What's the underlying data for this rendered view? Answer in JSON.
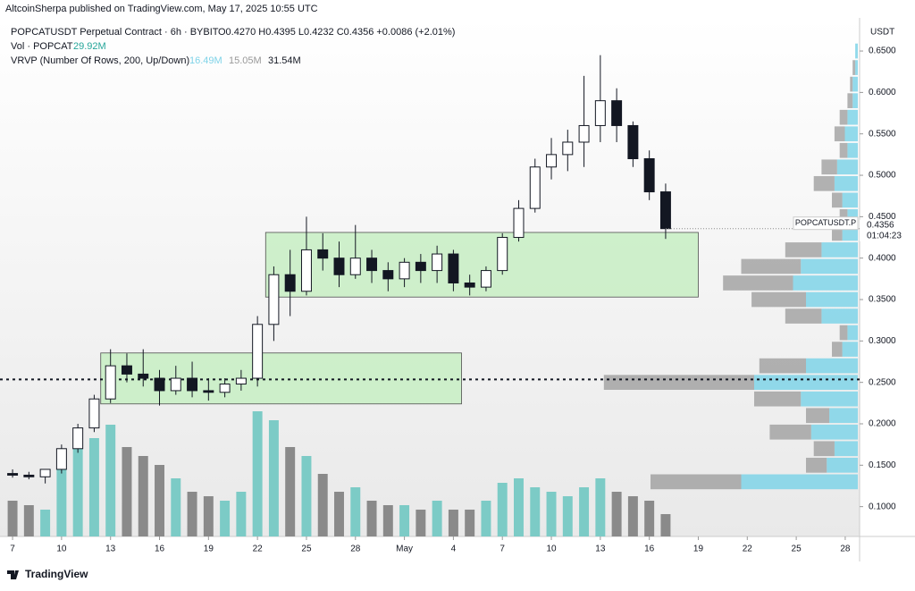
{
  "header": {
    "publisher": "AltcoinSherpa published on TradingView.com, May 17, 2025 10:55 UTC",
    "footer": "TradingView"
  },
  "chart_data": {
    "type": "candlestick",
    "symbol_line": "POPCATUSDT Perpetual Contract · 6h · BYBIT",
    "ohlc_line": "O0.4270 H0.4395 L0.4232 C0.4356 +0.0086 (+2.01%)",
    "vol_name": "Vol · POPCAT",
    "vol_value": "29.92M",
    "vrvp_name": "VRVP (Number Of Rows, 200, Up/Down)",
    "vrvp_up": "16.49M",
    "vrvp_down": "15.05M",
    "vrvp_total": "31.54M",
    "y_unit": "USDT",
    "symbol": "POPCATUSDT.P",
    "countdown": "01:04:23",
    "last_price": {
      "value": 0.4356,
      "label": "0.4356"
    },
    "x": [
      0,
      1,
      2,
      3,
      4,
      5,
      6,
      7,
      8,
      9,
      10,
      11,
      12,
      13,
      14,
      15,
      16,
      17,
      18,
      19,
      20,
      21,
      22,
      23,
      24,
      25,
      26,
      27,
      28,
      29,
      30,
      31,
      32,
      33,
      34,
      35,
      36,
      37,
      38,
      39,
      40
    ],
    "open": [
      0.14,
      0.138,
      0.136,
      0.145,
      0.17,
      0.195,
      0.23,
      0.27,
      0.26,
      0.255,
      0.24,
      0.255,
      0.24,
      0.238,
      0.248,
      0.255,
      0.32,
      0.38,
      0.36,
      0.41,
      0.4,
      0.38,
      0.4,
      0.385,
      0.375,
      0.395,
      0.385,
      0.405,
      0.37,
      0.365,
      0.385,
      0.425,
      0.46,
      0.51,
      0.525,
      0.54,
      0.56,
      0.59,
      0.56,
      0.52,
      0.48
    ],
    "high": [
      0.145,
      0.142,
      0.14,
      0.175,
      0.2,
      0.235,
      0.29,
      0.285,
      0.29,
      0.265,
      0.27,
      0.275,
      0.255,
      0.255,
      0.265,
      0.33,
      0.39,
      0.41,
      0.45,
      0.43,
      0.42,
      0.44,
      0.41,
      0.395,
      0.4,
      0.405,
      0.415,
      0.41,
      0.38,
      0.39,
      0.43,
      0.47,
      0.52,
      0.545,
      0.555,
      0.62,
      0.645,
      0.605,
      0.565,
      0.53,
      0.49
    ],
    "low": [
      0.135,
      0.133,
      0.128,
      0.14,
      0.165,
      0.19,
      0.225,
      0.25,
      0.245,
      0.222,
      0.235,
      0.232,
      0.228,
      0.232,
      0.24,
      0.245,
      0.3,
      0.33,
      0.355,
      0.385,
      0.365,
      0.375,
      0.37,
      0.36,
      0.365,
      0.37,
      0.37,
      0.36,
      0.355,
      0.36,
      0.38,
      0.42,
      0.455,
      0.495,
      0.505,
      0.51,
      0.54,
      0.54,
      0.51,
      0.47,
      0.4232
    ],
    "close": [
      0.138,
      0.136,
      0.145,
      0.17,
      0.195,
      0.23,
      0.27,
      0.26,
      0.255,
      0.24,
      0.255,
      0.24,
      0.238,
      0.248,
      0.255,
      0.32,
      0.38,
      0.36,
      0.41,
      0.4,
      0.38,
      0.4,
      0.385,
      0.375,
      0.395,
      0.385,
      0.405,
      0.37,
      0.365,
      0.385,
      0.425,
      0.46,
      0.51,
      0.525,
      0.54,
      0.56,
      0.59,
      0.56,
      0.52,
      0.48,
      0.4356
    ],
    "volume": [
      80,
      70,
      60,
      150,
      200,
      220,
      250,
      200,
      180,
      160,
      130,
      100,
      90,
      80,
      100,
      280,
      260,
      200,
      180,
      140,
      100,
      110,
      80,
      70,
      70,
      60,
      80,
      60,
      60,
      80,
      120,
      130,
      110,
      100,
      90,
      110,
      130,
      100,
      90,
      80,
      50
    ],
    "up_color": "#ffffff",
    "down_color": "#131722",
    "vol_up_color": "#7ccbc6",
    "vol_down_color": "#8a8a8a",
    "vlim": [
      0,
      400
    ],
    "xlim": [
      -0.77,
      51.88
    ],
    "ylim": [
      0.064,
      0.69
    ],
    "xticks": [
      {
        "value": 0,
        "label": "7"
      },
      {
        "value": 3,
        "label": "10"
      },
      {
        "value": 6,
        "label": "13"
      },
      {
        "value": 9,
        "label": "16"
      },
      {
        "value": 12,
        "label": "19"
      },
      {
        "value": 15,
        "label": "22"
      },
      {
        "value": 18,
        "label": "25"
      },
      {
        "value": 21,
        "label": "28"
      },
      {
        "value": 24,
        "label": "May"
      },
      {
        "value": 27,
        "label": "4"
      },
      {
        "value": 30,
        "label": "7"
      },
      {
        "value": 33,
        "label": "10"
      },
      {
        "value": 36,
        "label": "13"
      },
      {
        "value": 39,
        "label": "16"
      },
      {
        "value": 42,
        "label": "19"
      },
      {
        "value": 45,
        "label": "22"
      },
      {
        "value": 48,
        "label": "25"
      },
      {
        "value": 51,
        "label": "28"
      }
    ],
    "yticks": [
      {
        "value": 0.1,
        "label": "0.1000"
      },
      {
        "value": 0.15,
        "label": "0.1500"
      },
      {
        "value": 0.2,
        "label": "0.2000"
      },
      {
        "value": 0.25,
        "label": "0.2500"
      },
      {
        "value": 0.3,
        "label": "0.3000"
      },
      {
        "value": 0.35,
        "label": "0.3500"
      },
      {
        "value": 0.4,
        "label": "0.4000"
      },
      {
        "value": 0.45,
        "label": "0.4500"
      },
      {
        "value": 0.5,
        "label": "0.5000"
      },
      {
        "value": 0.55,
        "label": "0.5500"
      },
      {
        "value": 0.6,
        "label": "0.6000"
      },
      {
        "value": 0.65,
        "label": "0.6500"
      }
    ],
    "boxes": [
      {
        "x": [
          5.4,
          27.5
        ],
        "y": [
          0.224,
          0.2855
        ],
        "color": "#c8efc4"
      },
      {
        "x": [
          15.5,
          42.0
        ],
        "y": [
          0.353,
          0.431
        ],
        "color": "#c8efc4"
      }
    ],
    "hline": 0.2535,
    "vrvp": {
      "rows": [
        0.13,
        0.15,
        0.17,
        0.19,
        0.21,
        0.23,
        0.25,
        0.27,
        0.29,
        0.31,
        0.33,
        0.35,
        0.37,
        0.39,
        0.41,
        0.43,
        0.45,
        0.47,
        0.49,
        0.51,
        0.53,
        0.55,
        0.57,
        0.59,
        0.61,
        0.63,
        0.65
      ],
      "up": [
        45,
        12,
        9,
        18,
        11,
        22,
        40,
        20,
        6,
        4,
        14,
        20,
        25,
        22,
        14,
        6,
        4,
        6,
        9,
        8,
        4,
        5,
        4,
        2,
        2,
        1,
        1
      ],
      "down": [
        35,
        8,
        8,
        16,
        9,
        18,
        58,
        18,
        4,
        3,
        14,
        21,
        27,
        23,
        14,
        4,
        3,
        4,
        8,
        6,
        3,
        4,
        3,
        2,
        1,
        1,
        0
      ],
      "max": 100,
      "up_color": "#7fd3e8",
      "down_color": "#9a9a9a"
    }
  }
}
